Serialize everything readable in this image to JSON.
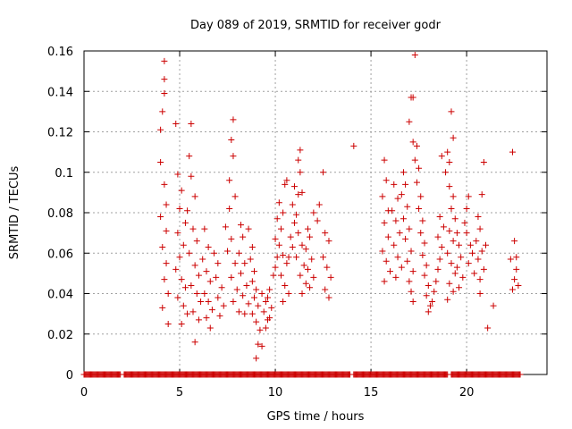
{
  "chart_data": {
    "type": "scatter",
    "title": "Day 089 of 2019, SRMTID for receiver godr",
    "xlabel": "GPS time / hours",
    "ylabel": "SRMTID / TECUs",
    "xlim": [
      0,
      24.2
    ],
    "ylim": [
      0,
      0.16
    ],
    "xticks": [
      0,
      5,
      10,
      15,
      20
    ],
    "yticks": [
      0,
      0.02,
      0.04,
      0.06,
      0.08,
      0.1,
      0.12,
      0.14,
      0.16
    ],
    "ytick_labels": [
      "0",
      "0.02",
      "0.04",
      "0.06",
      "0.08",
      "0.1",
      "0.12",
      "0.14",
      "0.16"
    ],
    "grid": true,
    "marker": "+",
    "color": "#cc0000",
    "series": [
      {
        "name": "SRMTID",
        "points": [
          [
            4.2,
            0.155
          ],
          [
            4.2,
            0.146
          ],
          [
            4.2,
            0.139
          ],
          [
            4.1,
            0.13
          ],
          [
            4.0,
            0.121
          ],
          [
            4.8,
            0.124
          ],
          [
            5.6,
            0.124
          ],
          [
            4.0,
            0.105
          ],
          [
            4.2,
            0.094
          ],
          [
            4.3,
            0.084
          ],
          [
            4.0,
            0.078
          ],
          [
            4.3,
            0.071
          ],
          [
            4.1,
            0.063
          ],
          [
            4.3,
            0.055
          ],
          [
            4.2,
            0.047
          ],
          [
            4.4,
            0.04
          ],
          [
            4.1,
            0.033
          ],
          [
            4.4,
            0.025
          ],
          [
            4.9,
            0.099
          ],
          [
            5.1,
            0.091
          ],
          [
            5.0,
            0.082
          ],
          [
            5.3,
            0.075
          ],
          [
            4.9,
            0.07
          ],
          [
            5.2,
            0.064
          ],
          [
            5.0,
            0.058
          ],
          [
            4.8,
            0.052
          ],
          [
            5.1,
            0.047
          ],
          [
            5.3,
            0.043
          ],
          [
            4.9,
            0.038
          ],
          [
            5.2,
            0.034
          ],
          [
            5.4,
            0.03
          ],
          [
            5.1,
            0.025
          ],
          [
            5.5,
            0.108
          ],
          [
            5.6,
            0.098
          ],
          [
            5.8,
            0.088
          ],
          [
            5.4,
            0.081
          ],
          [
            5.7,
            0.072
          ],
          [
            5.9,
            0.066
          ],
          [
            5.5,
            0.06
          ],
          [
            5.8,
            0.054
          ],
          [
            6.0,
            0.049
          ],
          [
            5.6,
            0.044
          ],
          [
            5.9,
            0.04
          ],
          [
            6.1,
            0.036
          ],
          [
            5.7,
            0.031
          ],
          [
            6.0,
            0.027
          ],
          [
            5.8,
            0.016
          ],
          [
            6.3,
            0.072
          ],
          [
            6.5,
            0.063
          ],
          [
            6.2,
            0.057
          ],
          [
            6.4,
            0.051
          ],
          [
            6.6,
            0.046
          ],
          [
            6.3,
            0.04
          ],
          [
            6.5,
            0.036
          ],
          [
            6.7,
            0.032
          ],
          [
            6.4,
            0.028
          ],
          [
            6.6,
            0.023
          ],
          [
            6.8,
            0.06
          ],
          [
            7.0,
            0.055
          ],
          [
            6.9,
            0.048
          ],
          [
            7.2,
            0.043
          ],
          [
            7.0,
            0.038
          ],
          [
            7.3,
            0.034
          ],
          [
            7.1,
            0.029
          ],
          [
            7.6,
            0.082
          ],
          [
            7.4,
            0.073
          ],
          [
            7.7,
            0.067
          ],
          [
            7.5,
            0.061
          ],
          [
            7.8,
            0.126
          ],
          [
            7.7,
            0.116
          ],
          [
            7.8,
            0.108
          ],
          [
            7.9,
            0.088
          ],
          [
            7.6,
            0.096
          ],
          [
            7.9,
            0.055
          ],
          [
            7.7,
            0.048
          ],
          [
            8.0,
            0.042
          ],
          [
            7.8,
            0.036
          ],
          [
            8.1,
            0.031
          ],
          [
            8.2,
            0.074
          ],
          [
            8.3,
            0.068
          ],
          [
            8.1,
            0.06
          ],
          [
            8.4,
            0.055
          ],
          [
            8.2,
            0.05
          ],
          [
            8.5,
            0.044
          ],
          [
            8.3,
            0.039
          ],
          [
            8.6,
            0.035
          ],
          [
            8.4,
            0.03
          ],
          [
            8.6,
            0.072
          ],
          [
            8.8,
            0.063
          ],
          [
            8.7,
            0.057
          ],
          [
            8.9,
            0.051
          ],
          [
            8.8,
            0.046
          ],
          [
            9.0,
            0.042
          ],
          [
            8.9,
            0.038
          ],
          [
            9.1,
            0.034
          ],
          [
            8.8,
            0.03
          ],
          [
            9.0,
            0.026
          ],
          [
            9.2,
            0.022
          ],
          [
            9.1,
            0.015
          ],
          [
            9.3,
            0.014
          ],
          [
            9.0,
            0.008
          ],
          [
            9.3,
            0.04
          ],
          [
            9.5,
            0.036
          ],
          [
            9.4,
            0.031
          ],
          [
            9.6,
            0.027
          ],
          [
            9.5,
            0.023
          ],
          [
            9.7,
            0.042
          ],
          [
            9.6,
            0.038
          ],
          [
            9.8,
            0.033
          ],
          [
            9.7,
            0.028
          ],
          [
            9.9,
            0.049
          ],
          [
            10.0,
            0.053
          ],
          [
            10.1,
            0.058
          ],
          [
            10.2,
            0.064
          ],
          [
            10.0,
            0.067
          ],
          [
            10.3,
            0.072
          ],
          [
            10.1,
            0.077
          ],
          [
            10.4,
            0.08
          ],
          [
            10.2,
            0.085
          ],
          [
            10.5,
            0.094
          ],
          [
            10.6,
            0.096
          ],
          [
            10.4,
            0.059
          ],
          [
            10.6,
            0.055
          ],
          [
            10.3,
            0.049
          ],
          [
            10.5,
            0.044
          ],
          [
            10.7,
            0.04
          ],
          [
            10.4,
            0.036
          ],
          [
            10.8,
            0.068
          ],
          [
            10.9,
            0.063
          ],
          [
            10.7,
            0.058
          ],
          [
            11.0,
            0.075
          ],
          [
            11.1,
            0.079
          ],
          [
            10.9,
            0.084
          ],
          [
            11.2,
            0.089
          ],
          [
            11.0,
            0.093
          ],
          [
            11.3,
            0.1
          ],
          [
            11.2,
            0.106
          ],
          [
            11.3,
            0.111
          ],
          [
            11.4,
            0.09
          ],
          [
            11.2,
            0.07
          ],
          [
            11.4,
            0.064
          ],
          [
            11.1,
            0.058
          ],
          [
            11.5,
            0.054
          ],
          [
            11.3,
            0.049
          ],
          [
            11.6,
            0.045
          ],
          [
            11.4,
            0.04
          ],
          [
            11.7,
            0.072
          ],
          [
            11.8,
            0.068
          ],
          [
            11.6,
            0.062
          ],
          [
            11.9,
            0.057
          ],
          [
            11.7,
            0.052
          ],
          [
            12.0,
            0.048
          ],
          [
            11.8,
            0.043
          ],
          [
            12.0,
            0.08
          ],
          [
            12.2,
            0.076
          ],
          [
            12.3,
            0.084
          ],
          [
            12.5,
            0.1
          ],
          [
            12.6,
            0.07
          ],
          [
            12.8,
            0.066
          ],
          [
            12.5,
            0.058
          ],
          [
            12.7,
            0.053
          ],
          [
            12.9,
            0.048
          ],
          [
            12.6,
            0.042
          ],
          [
            12.8,
            0.038
          ],
          [
            14.1,
            0.113
          ],
          [
            15.7,
            0.106
          ],
          [
            15.8,
            0.096
          ],
          [
            15.6,
            0.088
          ],
          [
            15.9,
            0.081
          ],
          [
            15.7,
            0.075
          ],
          [
            15.9,
            0.068
          ],
          [
            15.6,
            0.061
          ],
          [
            15.8,
            0.056
          ],
          [
            16.0,
            0.051
          ],
          [
            15.7,
            0.046
          ],
          [
            16.2,
            0.094
          ],
          [
            16.4,
            0.087
          ],
          [
            16.1,
            0.081
          ],
          [
            16.3,
            0.076
          ],
          [
            16.5,
            0.07
          ],
          [
            16.2,
            0.064
          ],
          [
            16.4,
            0.058
          ],
          [
            16.6,
            0.053
          ],
          [
            16.3,
            0.048
          ],
          [
            16.7,
            0.1
          ],
          [
            16.8,
            0.094
          ],
          [
            16.6,
            0.089
          ],
          [
            16.9,
            0.083
          ],
          [
            16.7,
            0.077
          ],
          [
            17.0,
            0.072
          ],
          [
            16.8,
            0.067
          ],
          [
            17.1,
            0.061
          ],
          [
            16.9,
            0.056
          ],
          [
            17.2,
            0.051
          ],
          [
            17.0,
            0.046
          ],
          [
            17.1,
            0.041
          ],
          [
            17.2,
            0.036
          ],
          [
            17.3,
            0.158
          ],
          [
            17.1,
            0.137
          ],
          [
            17.2,
            0.137
          ],
          [
            17.0,
            0.125
          ],
          [
            17.2,
            0.115
          ],
          [
            17.4,
            0.113
          ],
          [
            17.3,
            0.106
          ],
          [
            17.5,
            0.102
          ],
          [
            17.4,
            0.095
          ],
          [
            17.6,
            0.088
          ],
          [
            17.5,
            0.082
          ],
          [
            17.7,
            0.076
          ],
          [
            17.6,
            0.07
          ],
          [
            17.8,
            0.065
          ],
          [
            17.7,
            0.059
          ],
          [
            17.9,
            0.054
          ],
          [
            17.8,
            0.049
          ],
          [
            18.0,
            0.044
          ],
          [
            17.9,
            0.039
          ],
          [
            18.1,
            0.034
          ],
          [
            18.0,
            0.031
          ],
          [
            18.2,
            0.036
          ],
          [
            18.3,
            0.041
          ],
          [
            18.4,
            0.046
          ],
          [
            18.5,
            0.052
          ],
          [
            18.6,
            0.057
          ],
          [
            18.7,
            0.063
          ],
          [
            18.5,
            0.068
          ],
          [
            18.8,
            0.073
          ],
          [
            18.6,
            0.078
          ],
          [
            18.7,
            0.108
          ],
          [
            18.9,
            0.1
          ],
          [
            19.0,
            0.11
          ],
          [
            19.1,
            0.105
          ],
          [
            19.2,
            0.13
          ],
          [
            19.3,
            0.117
          ],
          [
            19.1,
            0.093
          ],
          [
            19.3,
            0.088
          ],
          [
            19.2,
            0.082
          ],
          [
            19.4,
            0.077
          ],
          [
            19.1,
            0.071
          ],
          [
            19.3,
            0.066
          ],
          [
            19.0,
            0.06
          ],
          [
            19.2,
            0.055
          ],
          [
            19.4,
            0.05
          ],
          [
            19.1,
            0.045
          ],
          [
            19.3,
            0.041
          ],
          [
            19.0,
            0.037
          ],
          [
            19.5,
            0.07
          ],
          [
            19.6,
            0.064
          ],
          [
            19.7,
            0.058
          ],
          [
            19.5,
            0.053
          ],
          [
            19.8,
            0.048
          ],
          [
            19.6,
            0.043
          ],
          [
            19.9,
            0.075
          ],
          [
            20.0,
            0.07
          ],
          [
            20.1,
            0.088
          ],
          [
            20.0,
            0.082
          ],
          [
            20.2,
            0.064
          ],
          [
            20.3,
            0.06
          ],
          [
            20.1,
            0.055
          ],
          [
            20.4,
            0.05
          ],
          [
            20.6,
            0.078
          ],
          [
            20.7,
            0.072
          ],
          [
            20.5,
            0.066
          ],
          [
            20.8,
            0.061
          ],
          [
            20.6,
            0.057
          ],
          [
            20.9,
            0.052
          ],
          [
            20.7,
            0.047
          ],
          [
            20.8,
            0.089
          ],
          [
            20.9,
            0.105
          ],
          [
            20.7,
            0.04
          ],
          [
            21.0,
            0.064
          ],
          [
            21.1,
            0.023
          ],
          [
            21.4,
            0.034
          ],
          [
            22.4,
            0.11
          ],
          [
            22.5,
            0.066
          ],
          [
            22.3,
            0.057
          ],
          [
            22.6,
            0.052
          ],
          [
            22.5,
            0.047
          ],
          [
            22.7,
            0.044
          ],
          [
            22.4,
            0.042
          ],
          [
            22.6,
            0.058
          ]
        ]
      }
    ],
    "baseline": {
      "y": 0,
      "segments": [
        [
          0,
          1.9
        ],
        [
          2.1,
          13.9
        ],
        [
          14.1,
          19.0
        ],
        [
          19.2,
          22.8
        ]
      ],
      "spacing_hours": 0.05
    }
  }
}
